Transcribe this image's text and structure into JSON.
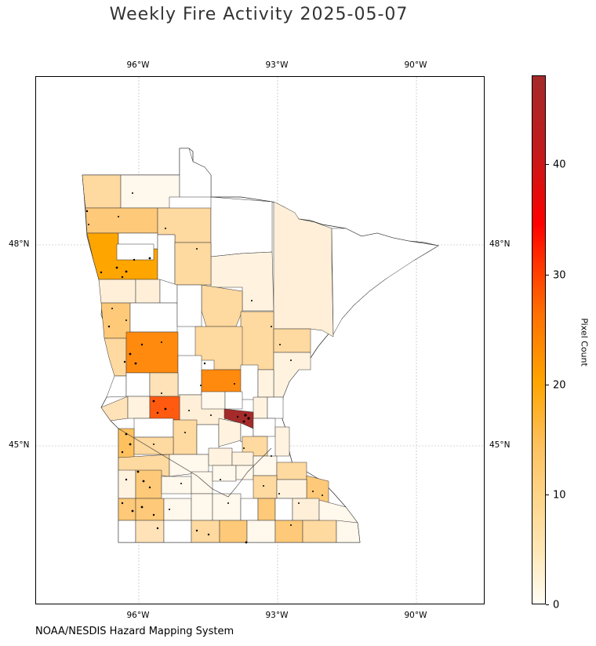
{
  "title": "Weekly Fire Activity 2025-05-07",
  "credit": "NOAA/NESDIS Hazard Mapping System",
  "map": {
    "region": "Minnesota",
    "longitude_ticks": [
      "96°W",
      "93°W",
      "90°W"
    ],
    "latitude_ticks": [
      "48°N",
      "45°N"
    ],
    "grid": true,
    "bounds": {
      "lon_min": -98.2,
      "lon_max": -88.45,
      "lat_min": 43.0,
      "lat_max": 50.85
    }
  },
  "colorbar": {
    "label": "Pixel Count",
    "ticks": [
      "0",
      "10",
      "20",
      "30",
      "40"
    ],
    "min": 0,
    "max": 48,
    "colors": {
      "low": "#fffdf5",
      "mid": "#ffa500",
      "high": "#ff0000",
      "max": "#a52a2a"
    }
  },
  "legend_colors": {
    "count_0": "#ffffff",
    "count_1_3": "#fff3e0",
    "count_4_7": "#fed9a0",
    "count_8_12": "#fec15e",
    "count_13_16": "#ffa500",
    "count_17_20": "#ff8a0e",
    "count_22_24": "#ff5a10",
    "count_47": "#a52a2a"
  }
}
